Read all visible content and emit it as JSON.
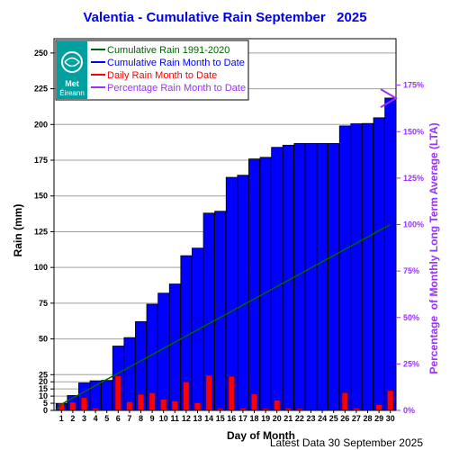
{
  "chart_data": {
    "type": "bar",
    "title": "Valentia - Cumulative Rain September   2025",
    "xlabel": "Day of Month",
    "ylabel": "Rain (mm)",
    "y2label": "Percentage  of Monthly Long Term Average (LTA)",
    "ylim": [
      0,
      260
    ],
    "y2lim": [
      0,
      200
    ],
    "yticks": [
      0,
      5,
      10,
      15,
      20,
      25,
      50,
      75,
      100,
      125,
      150,
      175,
      200,
      225,
      250
    ],
    "y2ticks": [
      "0%",
      "25%",
      "50%",
      "75%",
      "100%",
      "125%",
      "150%",
      "175%"
    ],
    "y2tick_values": [
      0,
      25,
      50,
      75,
      100,
      125,
      150,
      175
    ],
    "categories": [
      "1",
      "2",
      "3",
      "4",
      "5",
      "6",
      "7",
      "8",
      "9",
      "10",
      "11",
      "12",
      "13",
      "14",
      "15",
      "16",
      "17",
      "18",
      "19",
      "20",
      "21",
      "22",
      "23",
      "24",
      "25",
      "26",
      "27",
      "28",
      "29",
      "30"
    ],
    "series": [
      {
        "name": "Cumulative Rain Month to Date",
        "color": "#0000ff",
        "values": [
          4.8,
          10.4,
          19.2,
          20.7,
          21.0,
          45.0,
          50.9,
          62.1,
          74.3,
          82.0,
          88.4,
          108.2,
          113.5,
          138.0,
          139.3,
          163.0,
          164.5,
          175.9,
          177.0,
          184.0,
          185.5,
          186.7,
          186.7,
          186.7,
          186.7,
          199.0,
          200.5,
          200.7,
          204.7,
          218.5
        ]
      },
      {
        "name": "Daily Rain Month to Date",
        "color": "#ff0000",
        "values": [
          4.8,
          5.6,
          8.8,
          1.5,
          0.3,
          24.0,
          5.9,
          11.2,
          12.2,
          7.7,
          6.4,
          19.8,
          5.3,
          24.5,
          1.3,
          23.7,
          1.5,
          11.4,
          1.1,
          7.0,
          1.5,
          1.2,
          0.0,
          0.0,
          0.0,
          12.3,
          1.5,
          0.2,
          4.0,
          13.8
        ]
      },
      {
        "name": "Cumulative Rain 1991-2020",
        "color": "#006400",
        "values": [
          4.3,
          8.7,
          13.0,
          17.3,
          21.7,
          26.0,
          30.3,
          34.7,
          39.0,
          43.3,
          47.7,
          52.0,
          56.3,
          60.7,
          65.0,
          69.3,
          73.7,
          78.0,
          82.3,
          86.7,
          91.0,
          95.3,
          99.7,
          104.0,
          108.3,
          112.7,
          117.0,
          121.3,
          125.7,
          130.0
        ]
      }
    ],
    "percentage_to_date": 168,
    "legend": {
      "placement": "top-left",
      "logo_text": "Met Éireann",
      "entries": [
        {
          "label": "Cumulative Rain 1991-2020",
          "color": "#006400"
        },
        {
          "label": "Cumulative Rain Month to Date",
          "color": "#0000ff"
        },
        {
          "label": "Daily Rain Month to Date",
          "color": "#ff0000"
        },
        {
          "label": "Percentage Rain Month to Date",
          "color": "#9b30ff"
        }
      ]
    },
    "grid": true,
    "footer": "Latest Data 30 September 2025"
  }
}
